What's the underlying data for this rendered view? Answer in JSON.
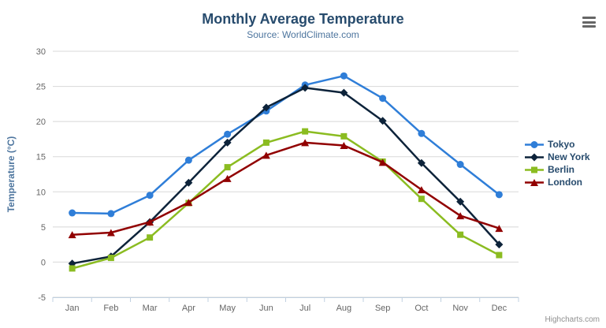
{
  "title": "Monthly Average Temperature",
  "subtitle": "Source: WorldClimate.com",
  "credits": "Highcharts.com",
  "export_menu_icon": "hamburger-icon",
  "colors": {
    "title": "#274b6d",
    "subtitle": "#4d759e",
    "axis_title": "#4d759e",
    "axis_labels": "#666666",
    "grid_line": "#d8d8d8",
    "axis_line": "#c0d0e0",
    "legend_text": "#274b6d",
    "credits_text": "#909090"
  },
  "chart_data": {
    "type": "line",
    "title": "Monthly Average Temperature",
    "subtitle": "Source: WorldClimate.com",
    "categories": [
      "Jan",
      "Feb",
      "Mar",
      "Apr",
      "May",
      "Jun",
      "Jul",
      "Aug",
      "Sep",
      "Oct",
      "Nov",
      "Dec"
    ],
    "series": [
      {
        "name": "Tokyo",
        "color": "#2f7ed8",
        "marker": "circle",
        "values": [
          7.0,
          6.9,
          9.5,
          14.5,
          18.2,
          21.5,
          25.2,
          26.5,
          23.3,
          18.3,
          13.9,
          9.6
        ]
      },
      {
        "name": "New York",
        "color": "#0d233a",
        "marker": "diamond",
        "values": [
          -0.2,
          0.8,
          5.7,
          11.3,
          17.0,
          22.0,
          24.8,
          24.1,
          20.1,
          14.1,
          8.6,
          2.5
        ]
      },
      {
        "name": "Berlin",
        "color": "#8bbc21",
        "marker": "square",
        "values": [
          -0.9,
          0.6,
          3.5,
          8.4,
          13.5,
          17.0,
          18.6,
          17.9,
          14.3,
          9.0,
          3.9,
          1.0
        ]
      },
      {
        "name": "London",
        "color": "#910000",
        "marker": "triangle",
        "values": [
          3.9,
          4.2,
          5.7,
          8.5,
          11.9,
          15.2,
          17.0,
          16.6,
          14.2,
          10.3,
          6.6,
          4.8
        ]
      }
    ],
    "xlabel": "",
    "ylabel": "Temperature (°C)",
    "ylim": [
      -5,
      30
    ],
    "ytick_step": 5,
    "grid": true,
    "legend_position": "right"
  }
}
